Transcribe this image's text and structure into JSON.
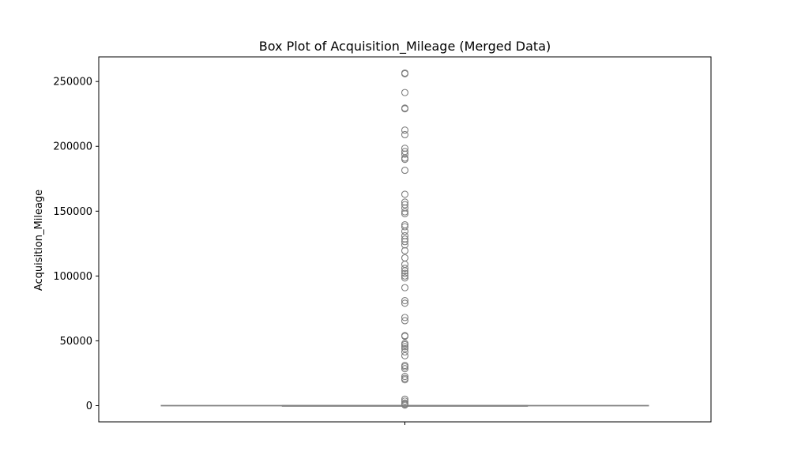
{
  "chart_data": {
    "type": "box",
    "title": "Box Plot of Acquisition_Mileage (Merged Data)",
    "xlabel": "",
    "ylabel": "Acquisition_Mileage",
    "ylim": [
      -12500,
      269000
    ],
    "yticks": [
      0,
      50000,
      100000,
      150000,
      200000,
      250000
    ],
    "ytick_labels": [
      "0",
      "50000",
      "100000",
      "150000",
      "200000",
      "250000"
    ],
    "grid": false,
    "legend": "none",
    "colors": {
      "box_line": "#7f7f7f",
      "outlier": "#7f7f7f",
      "axes": "#000000"
    },
    "box": {
      "min": 0,
      "q1": 0,
      "median": 0,
      "q3": 0,
      "max": 0
    },
    "outliers": [
      256500,
      256000,
      241500,
      229500,
      229000,
      212500,
      209000,
      198500,
      196000,
      194000,
      191000,
      190000,
      181500,
      163000,
      157000,
      155000,
      152500,
      149500,
      148000,
      139500,
      138000,
      134500,
      131000,
      128500,
      126500,
      124000,
      119500,
      114000,
      109000,
      106000,
      104000,
      102000,
      100000,
      98500,
      91000,
      81000,
      79000,
      68000,
      65500,
      54000,
      53500,
      48000,
      47000,
      45500,
      44000,
      41500,
      38500,
      31000,
      30000,
      28500,
      22500,
      21000,
      20000,
      5000,
      3500,
      2000,
      1200,
      500
    ]
  }
}
